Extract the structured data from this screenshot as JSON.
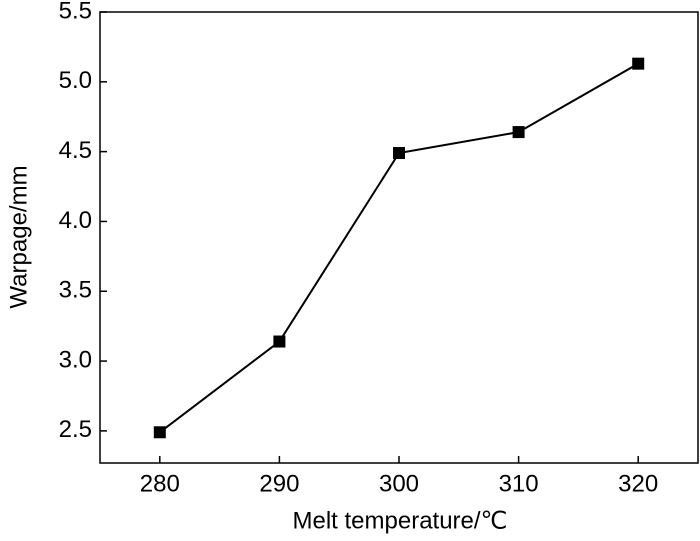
{
  "chart_data": {
    "type": "line",
    "x_label": "Melt temperature/℃",
    "y_label": "Warpage/mm",
    "x": [
      280,
      290,
      300,
      310,
      320
    ],
    "series": [
      {
        "color": "#000000",
        "values": [
          2.49,
          3.14,
          4.49,
          4.64,
          5.13
        ]
      }
    ],
    "xlim": [
      275,
      325
    ],
    "xticks": [
      280,
      290,
      300,
      310,
      320
    ],
    "ylim": [
      2.27,
      5.5
    ],
    "yticks": [
      2.5,
      {
        "value": 3,
        "label": "3.0"
      },
      3.5,
      {
        "value": 4,
        "label": "4.0"
      },
      4.5,
      {
        "value": 5,
        "label": "5.0"
      },
      5.5
    ],
    "grid": false
  }
}
